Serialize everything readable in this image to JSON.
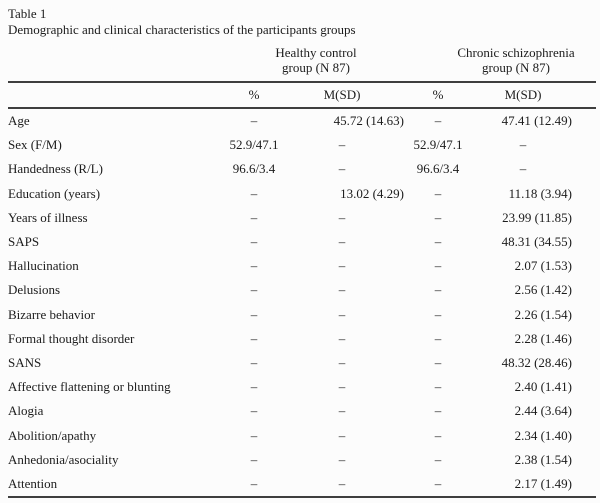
{
  "colors": {
    "background": "#fcfcfc",
    "text": "#1c1c1c",
    "rule": "#3f3f3f"
  },
  "table": {
    "label": "Table 1",
    "caption": "Demographic and clinical characteristics of the participants groups",
    "groups": [
      {
        "line1": "Healthy control",
        "line2": "group (N 87)"
      },
      {
        "line1": "Chronic schizophrenia",
        "line2": "group (N 87)"
      }
    ],
    "col_headers": [
      "%",
      "M(SD)",
      "%",
      "M(SD)"
    ],
    "dash": "–",
    "rows": [
      {
        "label": "Age",
        "values": [
          "–",
          "45.72 (14.63)",
          "–",
          "47.41 (12.49)"
        ]
      },
      {
        "label": "Sex (F/M)",
        "values": [
          "52.9/47.1",
          "–",
          "52.9/47.1",
          "–"
        ]
      },
      {
        "label": "Handedness (R/L)",
        "values": [
          "96.6/3.4",
          "–",
          "96.6/3.4",
          "–"
        ]
      },
      {
        "label": "Education (years)",
        "values": [
          "–",
          "13.02 (4.29)",
          "–",
          "11.18 (3.94)"
        ]
      },
      {
        "label": "Years of illness",
        "values": [
          "–",
          "–",
          "–",
          "23.99 (11.85)"
        ]
      },
      {
        "label": "SAPS",
        "values": [
          "–",
          "–",
          "–",
          "48.31 (34.55)"
        ]
      },
      {
        "label": "Hallucination",
        "values": [
          "–",
          "–",
          "–",
          "2.07 (1.53)"
        ]
      },
      {
        "label": "Delusions",
        "values": [
          "–",
          "–",
          "–",
          "2.56 (1.42)"
        ]
      },
      {
        "label": "Bizarre behavior",
        "values": [
          "–",
          "–",
          "–",
          "2.26 (1.54)"
        ]
      },
      {
        "label": "Formal thought disorder",
        "values": [
          "–",
          "–",
          "–",
          "2.28 (1.46)"
        ]
      },
      {
        "label": "SANS",
        "values": [
          "–",
          "–",
          "–",
          "48.32 (28.46)"
        ]
      },
      {
        "label": "Affective flattening or blunting",
        "values": [
          "–",
          "–",
          "–",
          "2.40 (1.41)"
        ]
      },
      {
        "label": "Alogia",
        "values": [
          "–",
          "–",
          "–",
          "2.44 (3.64)"
        ]
      },
      {
        "label": "Abolition/apathy",
        "values": [
          "–",
          "–",
          "–",
          "2.34 (1.40)"
        ]
      },
      {
        "label": "Anhedonia/asociality",
        "values": [
          "–",
          "–",
          "–",
          "2.38 (1.54)"
        ]
      },
      {
        "label": "Attention",
        "values": [
          "–",
          "–",
          "–",
          "2.17 (1.49)"
        ]
      }
    ]
  }
}
